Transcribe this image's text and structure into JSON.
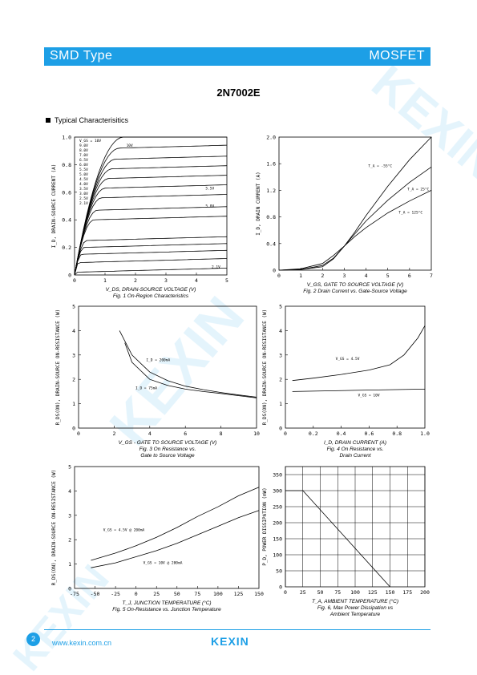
{
  "header": {
    "left": "SMD Type",
    "right": "MOSFET"
  },
  "part_number": "2N7002E",
  "section_title": "Typical  Characterisitics",
  "watermark_text": "KEXIN",
  "footer": {
    "page": "2",
    "url": "www.kexin.com.cn",
    "logo": "KEXIN"
  },
  "chart_data": [
    {
      "type": "line",
      "xlabel": "V_DS, DRAIN-SOURCE VOLTAGE (V)",
      "ylabel": "I_D, DRAIN-SOURCE CURRENT (A)",
      "caption": "Fig. 1  On-Region Characteristics",
      "x_ticks": [
        "0",
        "1",
        "2",
        "3",
        "4",
        "5"
      ],
      "y_ticks": [
        "0",
        "0.2",
        "0.4",
        "0.6",
        "0.8",
        "1.0"
      ],
      "xlim": [
        0,
        5
      ],
      "ylim": [
        0,
        1.0
      ],
      "legend_items": [
        "V_GS = 10V",
        "9.0V",
        "8.0V",
        "7.0V",
        "6.5V",
        "6.0V",
        "5.5V",
        "5.0V",
        "4.5V",
        "4.0V",
        "3.5V",
        "3.0V",
        "2.5V",
        "2.1V"
      ],
      "annotations": [
        "10V",
        "5.5V",
        "5.0V",
        "2.1V"
      ],
      "series": [
        {
          "name": "10V",
          "sat": 1.0
        },
        {
          "name": "9.0V",
          "sat": 0.92
        },
        {
          "name": "8.0V",
          "sat": 0.84
        },
        {
          "name": "7.0V",
          "sat": 0.77
        },
        {
          "name": "6.5V",
          "sat": 0.7
        },
        {
          "name": "6.0V",
          "sat": 0.63
        },
        {
          "name": "5.5V",
          "sat": 0.56
        },
        {
          "name": "5.0V",
          "sat": 0.47
        },
        {
          "name": "4.5V",
          "sat": 0.4
        },
        {
          "name": "4.0V",
          "sat": 0.25
        },
        {
          "name": "3.5V",
          "sat": 0.2
        },
        {
          "name": "3.0V",
          "sat": 0.15
        },
        {
          "name": "2.5V",
          "sat": 0.09
        },
        {
          "name": "2.1V",
          "sat": 0.02
        }
      ]
    },
    {
      "type": "line",
      "xlabel": "V_GS, GATE TO SOURCE VOLTAGE (V)",
      "ylabel": "I_D, DRAIN CURRENT (A)",
      "caption": "Fig. 2  Drain Current vs. Gate-Source Voltage",
      "x_ticks": [
        "0",
        "1",
        "2",
        "3",
        "4",
        "5",
        "6",
        "7"
      ],
      "y_ticks": [
        "0",
        "0.4",
        "0.8",
        "1.2",
        "1.6",
        "2.0"
      ],
      "xlim": [
        0,
        7
      ],
      "ylim": [
        0,
        2.0
      ],
      "labels": [
        "T_A = -55°C",
        "T_A = 25°C",
        "T_A = 125°C"
      ],
      "series": [
        {
          "name": "-55°C",
          "points": [
            [
              0,
              0
            ],
            [
              1,
              0.01
            ],
            [
              2,
              0.07
            ],
            [
              2.5,
              0.18
            ],
            [
              3,
              0.36
            ],
            [
              3.5,
              0.58
            ],
            [
              4,
              0.82
            ],
            [
              5,
              1.26
            ],
            [
              6,
              1.66
            ],
            [
              7,
              2.0
            ]
          ]
        },
        {
          "name": "25°C",
          "points": [
            [
              0,
              0
            ],
            [
              1,
              0.01
            ],
            [
              2,
              0.05
            ],
            [
              2.5,
              0.17
            ],
            [
              3,
              0.36
            ],
            [
              3.5,
              0.55
            ],
            [
              4,
              0.74
            ],
            [
              5,
              1.05
            ],
            [
              6,
              1.32
            ],
            [
              7,
              1.55
            ]
          ]
        },
        {
          "name": "125°C",
          "points": [
            [
              0,
              0
            ],
            [
              1,
              0.02
            ],
            [
              2,
              0.1
            ],
            [
              2.5,
              0.22
            ],
            [
              3,
              0.36
            ],
            [
              3.5,
              0.51
            ],
            [
              4,
              0.64
            ],
            [
              5,
              0.86
            ],
            [
              6,
              1.04
            ],
            [
              7,
              1.2
            ]
          ]
        }
      ]
    },
    {
      "type": "line",
      "xlabel": "V_GS - GATE TO SOURCE VOLTAGE (V)",
      "ylabel": "R_DS(ON), DRAIN-SOURCE ON-RESISTANCE (W)",
      "caption": "Fig. 3  On Resistance vs.",
      "caption2": "Gate to Source Voltage",
      "x_ticks": [
        "0",
        "2",
        "4",
        "6",
        "8",
        "10"
      ],
      "y_ticks": [
        "0",
        "1",
        "2",
        "3",
        "4",
        "5"
      ],
      "xlim": [
        0,
        10
      ],
      "ylim": [
        0,
        5
      ],
      "labels": [
        "I_D = 200mA",
        "I_D = 75mA"
      ],
      "series": [
        {
          "name": "200mA",
          "points": [
            [
              2.3,
              4.0
            ],
            [
              3,
              3.0
            ],
            [
              4,
              2.3
            ],
            [
              5,
              1.95
            ],
            [
              6,
              1.72
            ],
            [
              7,
              1.58
            ],
            [
              8,
              1.46
            ],
            [
              9,
              1.36
            ],
            [
              10,
              1.27
            ]
          ]
        },
        {
          "name": "75mA",
          "points": [
            [
              2.6,
              3.5
            ],
            [
              3,
              2.7
            ],
            [
              4,
              2.0
            ],
            [
              5,
              1.75
            ],
            [
              6,
              1.6
            ],
            [
              7,
              1.5
            ],
            [
              8,
              1.42
            ],
            [
              9,
              1.33
            ],
            [
              10,
              1.24
            ]
          ]
        }
      ]
    },
    {
      "type": "line",
      "xlabel": "I_D, DRAIN CURRENT (A)",
      "ylabel": "R_DS(ON), DRAIN-SOURCE ON-RESISTANCE (W)",
      "caption": "Fig. 4  On Resistance vs.",
      "caption2": "Drain Current",
      "x_ticks": [
        "0",
        "0.2",
        "0.4",
        "0.6",
        "0.8",
        "1.0"
      ],
      "y_ticks": [
        "0",
        "1",
        "2",
        "3",
        "4",
        "5"
      ],
      "xlim": [
        0,
        1.0
      ],
      "ylim": [
        0,
        5
      ],
      "labels": [
        "V_GS = 4.5V",
        "V_GS = 10V"
      ],
      "series": [
        {
          "name": "4.5V",
          "points": [
            [
              0.05,
              1.95
            ],
            [
              0.2,
              2.05
            ],
            [
              0.4,
              2.2
            ],
            [
              0.6,
              2.38
            ],
            [
              0.75,
              2.6
            ],
            [
              0.85,
              3.0
            ],
            [
              0.95,
              3.7
            ],
            [
              1.0,
              4.2
            ]
          ]
        },
        {
          "name": "10V",
          "points": [
            [
              0.05,
              1.5
            ],
            [
              0.5,
              1.55
            ],
            [
              1.0,
              1.6
            ]
          ]
        }
      ]
    },
    {
      "type": "line",
      "xlabel": "T_J, JUNCTION TEMPERATURE (°C)",
      "ylabel": "R_DS(ON), DRAIN-SOURCE ON-RESISTANCE (W)",
      "caption": "Fig. 5  On-Resistance vs. Junction Temperature",
      "x_ticks": [
        "-75",
        "-50",
        "-25",
        "0",
        "25",
        "50",
        "75",
        "100",
        "125",
        "150"
      ],
      "y_ticks": [
        "0",
        "1",
        "2",
        "3",
        "4",
        "5"
      ],
      "xlim": [
        -75,
        150
      ],
      "ylim": [
        0,
        5
      ],
      "labels": [
        "V_GS = 4.5V @  200mA",
        "V_GS = 10V @  200mA"
      ],
      "series": [
        {
          "name": "4.5V",
          "points": [
            [
              -55,
              1.15
            ],
            [
              -25,
              1.45
            ],
            [
              0,
              1.75
            ],
            [
              25,
              2.1
            ],
            [
              50,
              2.5
            ],
            [
              75,
              2.95
            ],
            [
              100,
              3.35
            ],
            [
              125,
              3.8
            ],
            [
              150,
              4.15
            ]
          ]
        },
        {
          "name": "10V",
          "points": [
            [
              -55,
              0.85
            ],
            [
              -25,
              1.05
            ],
            [
              0,
              1.3
            ],
            [
              25,
              1.55
            ],
            [
              50,
              1.85
            ],
            [
              75,
              2.2
            ],
            [
              100,
              2.55
            ],
            [
              125,
              2.9
            ],
            [
              150,
              3.2
            ]
          ]
        }
      ]
    },
    {
      "type": "line",
      "xlabel": "T_A, AMBIENT TEMPERATURE (°C)",
      "ylabel": "P_D, POWER DISSIPATION (mW)",
      "caption": "Fig. 6, Max Power Dissipation vs",
      "caption2": "Ambient Temperature",
      "x_ticks": [
        "0",
        "25",
        "50",
        "75",
        "100",
        "125",
        "150",
        "175",
        "200"
      ],
      "y_ticks": [
        "0",
        "50",
        "100",
        "150",
        "200",
        "250",
        "300",
        "350"
      ],
      "xlim": [
        0,
        200
      ],
      "ylim": [
        0,
        375
      ],
      "series": [
        {
          "name": "PD",
          "points": [
            [
              0,
              300
            ],
            [
              25,
              300
            ],
            [
              150,
              0
            ]
          ]
        }
      ]
    }
  ]
}
